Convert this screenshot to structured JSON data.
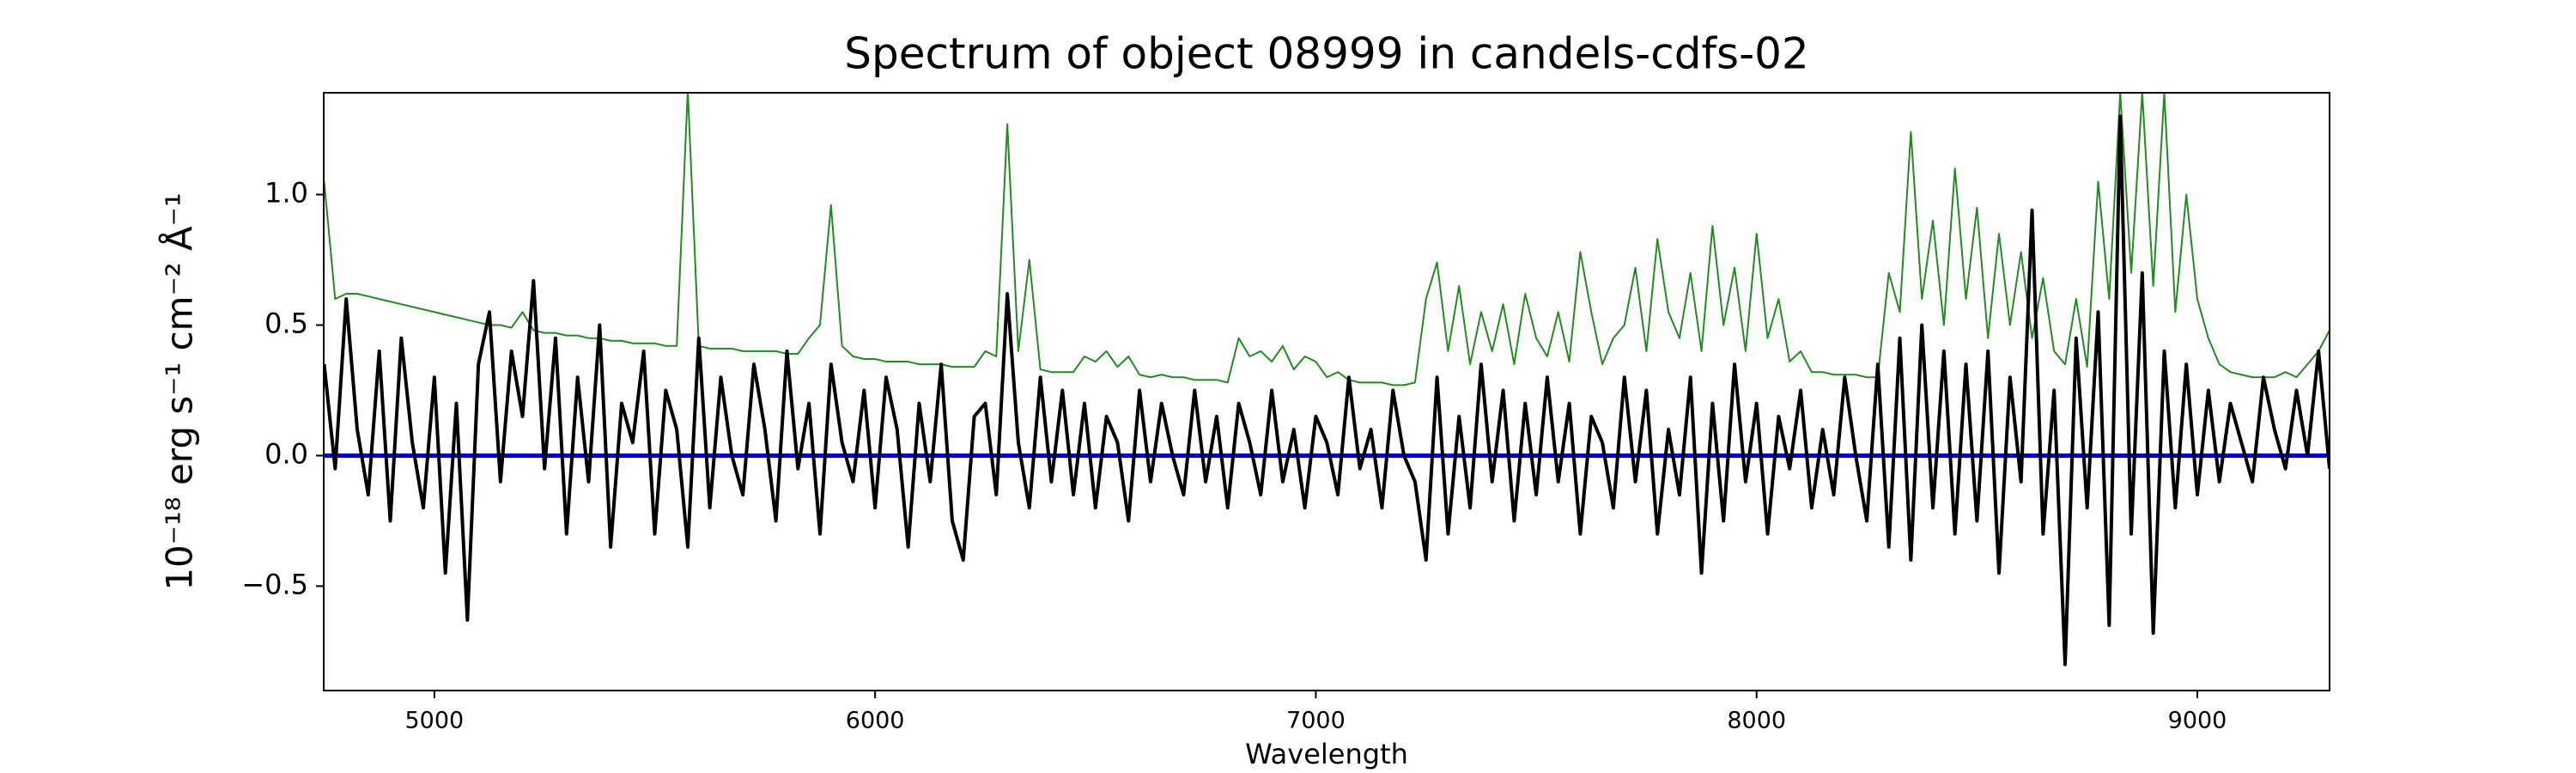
{
  "chart_data": {
    "type": "line",
    "title": "Spectrum of object 08999 in candels-cdfs-02",
    "x_label": "Wavelength",
    "y_label": "10⁻¹⁸ erg s⁻¹ cm⁻² Å⁻¹",
    "xlim": [
      4749,
      9300
    ],
    "ylim": [
      -0.9,
      1.39
    ],
    "xticks": [
      5000,
      6000,
      7000,
      8000,
      9000
    ],
    "yticks": [
      {
        "value": -0.5,
        "label": "−0.5"
      },
      {
        "value": 0.0,
        "label": "0.0"
      },
      {
        "value": 0.5,
        "label": "0.5"
      },
      {
        "value": 1.0,
        "label": "1.0"
      }
    ],
    "grid": false,
    "x": [
      4750,
      4775,
      4800,
      4825,
      4850,
      4875,
      4900,
      4925,
      4950,
      4975,
      5000,
      5025,
      5050,
      5075,
      5100,
      5125,
      5150,
      5175,
      5200,
      5225,
      5250,
      5275,
      5300,
      5325,
      5350,
      5375,
      5400,
      5425,
      5450,
      5475,
      5500,
      5525,
      5550,
      5575,
      5600,
      5625,
      5650,
      5675,
      5700,
      5725,
      5750,
      5775,
      5800,
      5825,
      5850,
      5875,
      5900,
      5925,
      5950,
      5975,
      6000,
      6025,
      6050,
      6075,
      6100,
      6125,
      6150,
      6175,
      6200,
      6225,
      6250,
      6275,
      6300,
      6325,
      6350,
      6375,
      6400,
      6425,
      6450,
      6475,
      6500,
      6525,
      6550,
      6575,
      6600,
      6625,
      6650,
      6675,
      6700,
      6725,
      6750,
      6775,
      6800,
      6825,
      6850,
      6875,
      6900,
      6925,
      6950,
      6975,
      7000,
      7025,
      7050,
      7075,
      7100,
      7125,
      7150,
      7175,
      7200,
      7225,
      7250,
      7275,
      7300,
      7325,
      7350,
      7375,
      7400,
      7425,
      7450,
      7475,
      7500,
      7525,
      7550,
      7575,
      7600,
      7625,
      7650,
      7675,
      7700,
      7725,
      7750,
      7775,
      7800,
      7825,
      7850,
      7875,
      7900,
      7925,
      7950,
      7975,
      8000,
      8025,
      8050,
      8075,
      8100,
      8125,
      8150,
      8175,
      8200,
      8225,
      8250,
      8275,
      8300,
      8325,
      8350,
      8375,
      8400,
      8425,
      8450,
      8475,
      8500,
      8525,
      8550,
      8575,
      8600,
      8625,
      8650,
      8675,
      8700,
      8725,
      8750,
      8775,
      8800,
      8825,
      8850,
      8875,
      8900,
      8925,
      8950,
      8975,
      9000,
      9025,
      9050,
      9075,
      9100,
      9125,
      9150,
      9175,
      9200,
      9225,
      9250,
      9275,
      9300
    ],
    "series": [
      {
        "color": "#228b22",
        "width": 2,
        "values": [
          1.05,
          0.6,
          0.62,
          0.62,
          0.61,
          0.6,
          0.59,
          0.58,
          0.57,
          0.56,
          0.55,
          0.54,
          0.53,
          0.52,
          0.51,
          0.5,
          0.5,
          0.49,
          0.55,
          0.48,
          0.47,
          0.47,
          0.46,
          0.46,
          0.45,
          0.45,
          0.44,
          0.44,
          0.43,
          0.43,
          0.43,
          0.42,
          0.42,
          1.4,
          0.42,
          0.41,
          0.41,
          0.41,
          0.4,
          0.4,
          0.4,
          0.4,
          0.39,
          0.39,
          0.45,
          0.5,
          0.96,
          0.42,
          0.38,
          0.37,
          0.37,
          0.36,
          0.36,
          0.36,
          0.35,
          0.35,
          0.35,
          0.34,
          0.34,
          0.34,
          0.4,
          0.38,
          1.27,
          0.4,
          0.75,
          0.33,
          0.32,
          0.32,
          0.32,
          0.38,
          0.36,
          0.4,
          0.34,
          0.38,
          0.31,
          0.3,
          0.31,
          0.3,
          0.3,
          0.29,
          0.29,
          0.29,
          0.28,
          0.45,
          0.38,
          0.4,
          0.36,
          0.42,
          0.33,
          0.38,
          0.36,
          0.3,
          0.32,
          0.29,
          0.28,
          0.28,
          0.28,
          0.27,
          0.27,
          0.28,
          0.6,
          0.74,
          0.4,
          0.65,
          0.35,
          0.55,
          0.4,
          0.58,
          0.35,
          0.62,
          0.45,
          0.38,
          0.55,
          0.36,
          0.78,
          0.55,
          0.35,
          0.45,
          0.5,
          0.72,
          0.4,
          0.83,
          0.55,
          0.45,
          0.7,
          0.4,
          0.88,
          0.5,
          0.72,
          0.4,
          0.85,
          0.45,
          0.6,
          0.36,
          0.4,
          0.32,
          0.32,
          0.31,
          0.31,
          0.31,
          0.3,
          0.3,
          0.7,
          0.55,
          1.24,
          0.6,
          0.9,
          0.5,
          1.1,
          0.6,
          0.95,
          0.45,
          0.85,
          0.5,
          0.78,
          0.45,
          0.68,
          0.4,
          0.35,
          0.6,
          0.34,
          1.05,
          0.6,
          1.39,
          0.7,
          1.39,
          0.65,
          1.39,
          0.55,
          1.0,
          0.6,
          0.45,
          0.35,
          0.32,
          0.31,
          0.3,
          0.3,
          0.3,
          0.32,
          0.3,
          0.35,
          0.4,
          0.48
        ]
      },
      {
        "color": "#0000cc",
        "width": 5,
        "values": [
          0,
          0,
          0,
          0,
          0,
          0,
          0,
          0,
          0,
          0,
          0,
          0,
          0,
          0,
          0,
          0,
          0,
          0,
          0,
          0,
          0,
          0,
          0,
          0,
          0,
          0,
          0,
          0,
          0,
          0,
          0,
          0,
          0,
          0,
          0,
          0,
          0,
          0,
          0,
          0,
          0,
          0,
          0,
          0,
          0,
          0,
          0,
          0,
          0,
          0,
          0,
          0,
          0,
          0,
          0,
          0,
          0,
          0,
          0,
          0,
          0,
          0,
          0,
          0,
          0,
          0,
          0,
          0,
          0,
          0,
          0,
          0,
          0,
          0,
          0,
          0,
          0,
          0,
          0,
          0,
          0,
          0,
          0,
          0,
          0,
          0,
          0,
          0,
          0,
          0,
          0,
          0,
          0,
          0,
          0,
          0,
          0,
          0,
          0,
          0,
          0,
          0,
          0,
          0,
          0,
          0,
          0,
          0,
          0,
          0,
          0,
          0,
          0,
          0,
          0,
          0,
          0,
          0,
          0,
          0,
          0,
          0,
          0,
          0,
          0,
          0,
          0,
          0,
          0,
          0,
          0,
          0,
          0,
          0,
          0,
          0,
          0,
          0,
          0,
          0,
          0,
          0,
          0,
          0,
          0,
          0,
          0,
          0,
          0,
          0,
          0,
          0,
          0,
          0,
          0,
          0,
          0,
          0,
          0,
          0,
          0,
          0,
          0,
          0,
          0,
          0,
          0,
          0,
          0,
          0,
          0,
          0,
          0,
          0,
          0,
          0,
          0,
          0,
          0,
          0,
          0,
          0,
          0
        ]
      },
      {
        "color": "#000000",
        "width": 4,
        "values": [
          0.35,
          -0.05,
          0.6,
          0.1,
          -0.15,
          0.4,
          -0.25,
          0.45,
          0.05,
          -0.2,
          0.3,
          -0.45,
          0.2,
          -0.63,
          0.35,
          0.55,
          -0.1,
          0.4,
          0.15,
          0.67,
          -0.05,
          0.45,
          -0.3,
          0.3,
          -0.1,
          0.5,
          -0.35,
          0.2,
          0.05,
          0.4,
          -0.3,
          0.25,
          0.1,
          -0.35,
          0.45,
          -0.2,
          0.3,
          0.0,
          -0.15,
          0.35,
          0.1,
          -0.25,
          0.4,
          -0.05,
          0.2,
          -0.3,
          0.35,
          0.05,
          -0.1,
          0.25,
          -0.2,
          0.3,
          0.1,
          -0.35,
          0.2,
          -0.1,
          0.35,
          -0.25,
          -0.4,
          0.15,
          0.2,
          -0.15,
          0.62,
          0.05,
          -0.2,
          0.3,
          -0.1,
          0.25,
          -0.15,
          0.2,
          -0.2,
          0.15,
          0.05,
          -0.25,
          0.25,
          -0.1,
          0.2,
          0.0,
          -0.15,
          0.25,
          -0.1,
          0.15,
          -0.2,
          0.2,
          0.05,
          -0.15,
          0.25,
          -0.1,
          0.1,
          -0.2,
          0.15,
          0.05,
          -0.15,
          0.3,
          -0.05,
          0.1,
          -0.2,
          0.25,
          0.0,
          -0.1,
          -0.4,
          0.3,
          -0.3,
          0.15,
          -0.2,
          0.35,
          -0.1,
          0.25,
          -0.25,
          0.2,
          -0.15,
          0.3,
          -0.1,
          0.2,
          -0.3,
          0.15,
          0.05,
          -0.2,
          0.3,
          -0.1,
          0.25,
          -0.3,
          0.1,
          -0.15,
          0.3,
          -0.45,
          0.2,
          -0.25,
          0.35,
          -0.1,
          0.2,
          -0.3,
          0.15,
          -0.05,
          0.25,
          -0.2,
          0.1,
          -0.15,
          0.3,
          0.0,
          -0.25,
          0.35,
          -0.35,
          0.45,
          -0.4,
          0.5,
          -0.2,
          0.4,
          -0.3,
          0.35,
          -0.25,
          0.4,
          -0.45,
          0.3,
          -0.1,
          0.94,
          -0.3,
          0.25,
          -0.8,
          0.45,
          -0.2,
          0.55,
          -0.65,
          1.3,
          -0.3,
          0.7,
          -0.68,
          0.4,
          -0.2,
          0.35,
          -0.15,
          0.25,
          -0.1,
          0.2,
          0.05,
          -0.1,
          0.3,
          0.1,
          -0.05,
          0.25,
          0.0,
          0.4,
          -0.05
        ]
      }
    ]
  }
}
